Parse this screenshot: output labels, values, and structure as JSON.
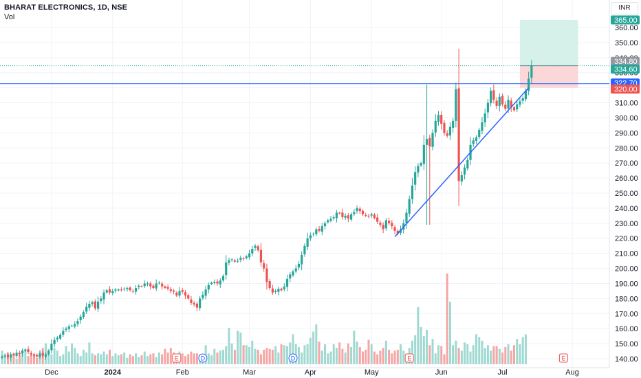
{
  "header": {
    "symbol_title": "BHARAT ELECTRONICS, 1D, NSE",
    "volume_label": "Vol"
  },
  "currency_label": "INR",
  "colors": {
    "up": "#26a69a",
    "down": "#ef5350",
    "up_vol": "#9fd9d1",
    "down_vol": "#f5a6a4",
    "trendline": "#2962ff",
    "profit_zone": "#d2efe8",
    "loss_zone": "#fbd3d3"
  },
  "price_tags": [
    {
      "label": "365.00",
      "value": 365.0,
      "color": "#26a69a"
    },
    {
      "label": "334.80",
      "value": 334.8,
      "color": "#9598a1"
    },
    {
      "label": "334.60",
      "value": 334.6,
      "color": "#26a69a"
    },
    {
      "label": "322.70",
      "value": 322.7,
      "color": "#2962ff"
    },
    {
      "label": "320.00",
      "value": 320.0,
      "color": "#ef5350"
    }
  ],
  "chart_data": {
    "type": "candlestick",
    "title": "BHARAT ELECTRONICS, 1D, NSE",
    "y_axis": {
      "side": "right",
      "range": [
        138,
        368
      ],
      "ticks": [
        140,
        150,
        160,
        170,
        180,
        190,
        200,
        210,
        220,
        230,
        240,
        250,
        260,
        270,
        280,
        290,
        300,
        310,
        320,
        330,
        340,
        350,
        360
      ]
    },
    "x_axis": {
      "labels": [
        {
          "label": "Dec",
          "bar": 17
        },
        {
          "label": "2024",
          "bar": 38
        },
        {
          "label": "Feb",
          "bar": 62
        },
        {
          "label": "Mar",
          "bar": 85
        },
        {
          "label": "Apr",
          "bar": 106
        },
        {
          "label": "May",
          "bar": 127
        },
        {
          "label": "Jun",
          "bar": 151
        },
        {
          "label": "Jul",
          "bar": 172
        },
        {
          "label": "Aug",
          "bar": 196
        }
      ]
    },
    "horizontal_lines": [
      {
        "value": 322.7,
        "style": "solid",
        "color": "#2962ff"
      },
      {
        "value": 334.6,
        "style": "dotted",
        "color": "#26a69a"
      }
    ],
    "trendline": {
      "from": {
        "bar": 135,
        "price": 221
      },
      "to": {
        "bar": 181,
        "price": 320
      }
    },
    "position": {
      "entry": 334.6,
      "target": 365.0,
      "stop": 320.0,
      "from_bar": 178,
      "to_bar": 198
    },
    "event_markers": [
      {
        "type": "E",
        "bar": 60
      },
      {
        "type": "D",
        "bar": 69
      },
      {
        "type": "D",
        "bar": 100
      },
      {
        "type": "E",
        "bar": 140
      },
      {
        "type": "E",
        "bar": 193
      }
    ],
    "closes": [
      141.5,
      142.0,
      141.0,
      143.0,
      142.5,
      144.0,
      143.0,
      145.5,
      146.0,
      144.5,
      143.0,
      142.0,
      141.5,
      143.5,
      142.0,
      143.0,
      145.0,
      150.0,
      152.5,
      154.0,
      156.0,
      158.5,
      160.0,
      161.5,
      162.0,
      163.0,
      165.0,
      168.0,
      171.0,
      174.5,
      176.5,
      177.5,
      173.5,
      178.0,
      180.0,
      184.0,
      185.5,
      184.0,
      185.0,
      186.0,
      186.0,
      185.5,
      186.5,
      187.0,
      185.5,
      184.5,
      187.0,
      188.5,
      188.0,
      190.0,
      190.0,
      188.0,
      187.0,
      190.0,
      190.5,
      188.0,
      187.0,
      186.5,
      185.0,
      184.5,
      182.0,
      185.0,
      184.5,
      182.0,
      180.0,
      177.0,
      176.0,
      174.0,
      180.0,
      182.5,
      186.0,
      189.0,
      190.5,
      191.0,
      190.0,
      192.0,
      195.0,
      204.0,
      205.5,
      206.0,
      204.5,
      205.0,
      207.0,
      206.5,
      208.0,
      210.0,
      213.0,
      215.0,
      212.0,
      204.0,
      200.0,
      191.0,
      187.0,
      184.0,
      185.0,
      186.5,
      185.5,
      188.0,
      193.0,
      196.0,
      198.0,
      200.0,
      203.0,
      209.0,
      215.0,
      220.0,
      222.0,
      223.0,
      226.0,
      225.0,
      228.0,
      230.0,
      232.0,
      233.0,
      234.0,
      237.0,
      236.5,
      234.0,
      235.0,
      233.0,
      236.0,
      237.5,
      240.0,
      238.0,
      236.0,
      235.0,
      234.5,
      236.0,
      233.5,
      231.0,
      229.0,
      226.0,
      232.0,
      230.0,
      228.0,
      225.0,
      223.0,
      226.0,
      230.0,
      237.0,
      246.0,
      255.0,
      264.0,
      268.0,
      270.0,
      282.0,
      286.0,
      281.0,
      290.0,
      298.0,
      302.0,
      296.0,
      290.0,
      288.0,
      294.0,
      298.0,
      319.0,
      258.0,
      262.0,
      267.0,
      272.0,
      282.0,
      285.0,
      287.0,
      292.0,
      297.0,
      303.0,
      310.0,
      318.0,
      312.0,
      308.0,
      314.0,
      309.0,
      306.0,
      312.0,
      307.0,
      305.0,
      309.0,
      311.0,
      313.0,
      318.0,
      326.0,
      334.6
    ],
    "volumes_rel": [
      0.15,
      0.11,
      0.13,
      0.08,
      0.12,
      0.06,
      0.1,
      0.14,
      0.17,
      0.09,
      0.12,
      0.11,
      0.07,
      0.14,
      0.18,
      0.23,
      0.17,
      0.11,
      0.18,
      0.15,
      0.09,
      0.11,
      0.2,
      0.14,
      0.23,
      0.18,
      0.12,
      0.09,
      0.16,
      0.13,
      0.24,
      0.12,
      0.1,
      0.12,
      0.11,
      0.14,
      0.11,
      0.16,
      0.09,
      0.12,
      0.1,
      0.11,
      0.13,
      0.07,
      0.11,
      0.09,
      0.12,
      0.08,
      0.1,
      0.14,
      0.09,
      0.11,
      0.12,
      0.08,
      0.13,
      0.11,
      0.17,
      0.13,
      0.18,
      0.13,
      0.07,
      0.14,
      0.12,
      0.09,
      0.11,
      0.14,
      0.12,
      0.12,
      0.11,
      0.09,
      0.21,
      0.12,
      0.1,
      0.17,
      0.13,
      0.15,
      0.16,
      0.2,
      0.4,
      0.23,
      0.16,
      0.37,
      0.35,
      0.21,
      0.21,
      0.19,
      0.26,
      0.17,
      0.16,
      0.11,
      0.16,
      0.18,
      0.17,
      0.16,
      0.2,
      0.13,
      0.22,
      0.21,
      0.2,
      0.24,
      0.33,
      0.22,
      0.19,
      0.13,
      0.21,
      0.22,
      0.29,
      0.36,
      0.44,
      0.25,
      0.15,
      0.22,
      0.12,
      0.14,
      0.22,
      0.18,
      0.24,
      0.17,
      0.13,
      0.23,
      0.19,
      0.37,
      0.25,
      0.19,
      0.14,
      0.16,
      0.27,
      0.22,
      0.14,
      0.11,
      0.15,
      0.18,
      0.26,
      0.16,
      0.12,
      0.15,
      0.16,
      0.22,
      0.15,
      0.11,
      0.18,
      0.26,
      0.32,
      0.63,
      0.41,
      0.31,
      0.38,
      0.21,
      0.28,
      0.12,
      0.21,
      0.2,
      0.11,
      1.0,
      0.69,
      0.21,
      0.26,
      0.18,
      0.15,
      0.24,
      0.22,
      0.14,
      0.21,
      0.33,
      0.3,
      0.26,
      0.18,
      0.21,
      0.15,
      0.2,
      0.2,
      0.17,
      0.13,
      0.19,
      0.22,
      0.15,
      0.21,
      0.28,
      0.22,
      0.3,
      0.33
    ]
  }
}
